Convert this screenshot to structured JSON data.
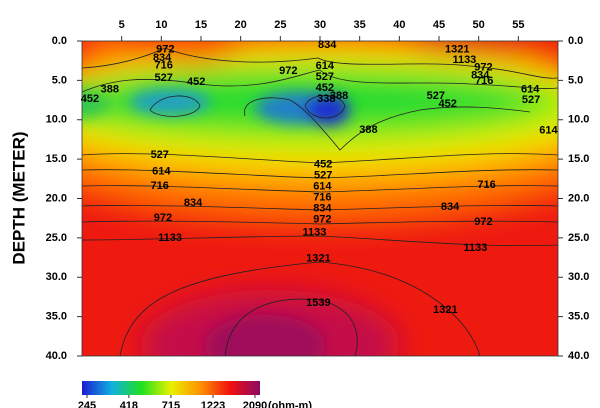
{
  "chart_data": {
    "type": "contour",
    "y_label": "DEPTH (METER)",
    "xlim": [
      0,
      60
    ],
    "xticks": [
      5,
      10,
      15,
      20,
      25,
      30,
      35,
      40,
      45,
      50,
      55
    ],
    "ylim": [
      0,
      40
    ],
    "yticks": [
      {
        "value": 0,
        "label": "0.0"
      },
      {
        "value": 5,
        "label": "5.0"
      },
      {
        "value": 10,
        "label": "10.0"
      },
      {
        "value": 15,
        "label": "15.0"
      },
      {
        "value": 20,
        "label": "20.0"
      },
      {
        "value": 25,
        "label": "25.0"
      },
      {
        "value": 30,
        "label": "30.0"
      },
      {
        "value": 35,
        "label": "35.0"
      },
      {
        "value": 40,
        "label": "40.0"
      }
    ],
    "y_reversed": true,
    "contour_labels": [
      {
        "value": 972,
        "x": 10.5,
        "y": 1.1
      },
      {
        "value": 834,
        "x": 10.1,
        "y": 2.2
      },
      {
        "value": 716,
        "x": 10.3,
        "y": 3.1
      },
      {
        "value": 527,
        "x": 10.3,
        "y": 4.7
      },
      {
        "value": 452,
        "x": 14.4,
        "y": 5.2
      },
      {
        "value": 452,
        "x": 1.0,
        "y": 7.4
      },
      {
        "value": 388,
        "x": 3.5,
        "y": 6.2
      },
      {
        "value": 972,
        "x": 26,
        "y": 3.8
      },
      {
        "value": 834,
        "x": 30.9,
        "y": 0.5
      },
      {
        "value": 614,
        "x": 30.6,
        "y": 3.2
      },
      {
        "value": 527,
        "x": 30.6,
        "y": 4.6
      },
      {
        "value": 452,
        "x": 30.6,
        "y": 6.0
      },
      {
        "value": 338,
        "x": 30.8,
        "y": 7.4
      },
      {
        "value": 388,
        "x": 32.4,
        "y": 7.0
      },
      {
        "value": 1321,
        "x": 47.3,
        "y": 1.1
      },
      {
        "value": 1133,
        "x": 48.2,
        "y": 2.4
      },
      {
        "value": 972,
        "x": 50.6,
        "y": 3.4
      },
      {
        "value": 834,
        "x": 50.2,
        "y": 4.4
      },
      {
        "value": 716,
        "x": 50.7,
        "y": 5.1
      },
      {
        "value": 614,
        "x": 56.5,
        "y": 6.2
      },
      {
        "value": 527,
        "x": 44.6,
        "y": 7.0
      },
      {
        "value": 452,
        "x": 46.1,
        "y": 8.0
      },
      {
        "value": 527,
        "x": 56.6,
        "y": 7.5
      },
      {
        "value": 614,
        "x": 58.8,
        "y": 11.4
      },
      {
        "value": 388,
        "x": 36.1,
        "y": 11.3
      },
      {
        "value": 527,
        "x": 9.8,
        "y": 14.5
      },
      {
        "value": 614,
        "x": 10,
        "y": 16.6
      },
      {
        "value": 716,
        "x": 9.8,
        "y": 18.4
      },
      {
        "value": 834,
        "x": 14,
        "y": 20.6
      },
      {
        "value": 972,
        "x": 10.2,
        "y": 22.5
      },
      {
        "value": 1133,
        "x": 11.1,
        "y": 25
      },
      {
        "value": 452,
        "x": 30.4,
        "y": 15.7
      },
      {
        "value": 527,
        "x": 30.4,
        "y": 17.1
      },
      {
        "value": 614,
        "x": 30.3,
        "y": 18.5
      },
      {
        "value": 716,
        "x": 30.3,
        "y": 19.9
      },
      {
        "value": 834,
        "x": 30.3,
        "y": 21.3
      },
      {
        "value": 972,
        "x": 30.3,
        "y": 22.7
      },
      {
        "value": 1133,
        "x": 29.3,
        "y": 24.3
      },
      {
        "value": 716,
        "x": 51,
        "y": 18.3
      },
      {
        "value": 834,
        "x": 46.4,
        "y": 21.1
      },
      {
        "value": 972,
        "x": 50.6,
        "y": 23
      },
      {
        "value": 1133,
        "x": 49.6,
        "y": 26.3
      },
      {
        "value": 1321,
        "x": 29.8,
        "y": 27.6
      },
      {
        "value": 1539,
        "x": 29.8,
        "y": 33.3
      },
      {
        "value": 1321,
        "x": 45.8,
        "y": 34.2
      }
    ],
    "colorbar": {
      "label": "(ohm-m)",
      "log_scale": true,
      "clim": [
        245,
        2090
      ],
      "ticks": [
        245,
        418,
        715,
        1223,
        2090
      ],
      "colors": [
        "#1c1cd0",
        "#10b0e0",
        "#20e020",
        "#e8f000",
        "#ff9000",
        "#f01010",
        "#8c0a64"
      ]
    }
  }
}
